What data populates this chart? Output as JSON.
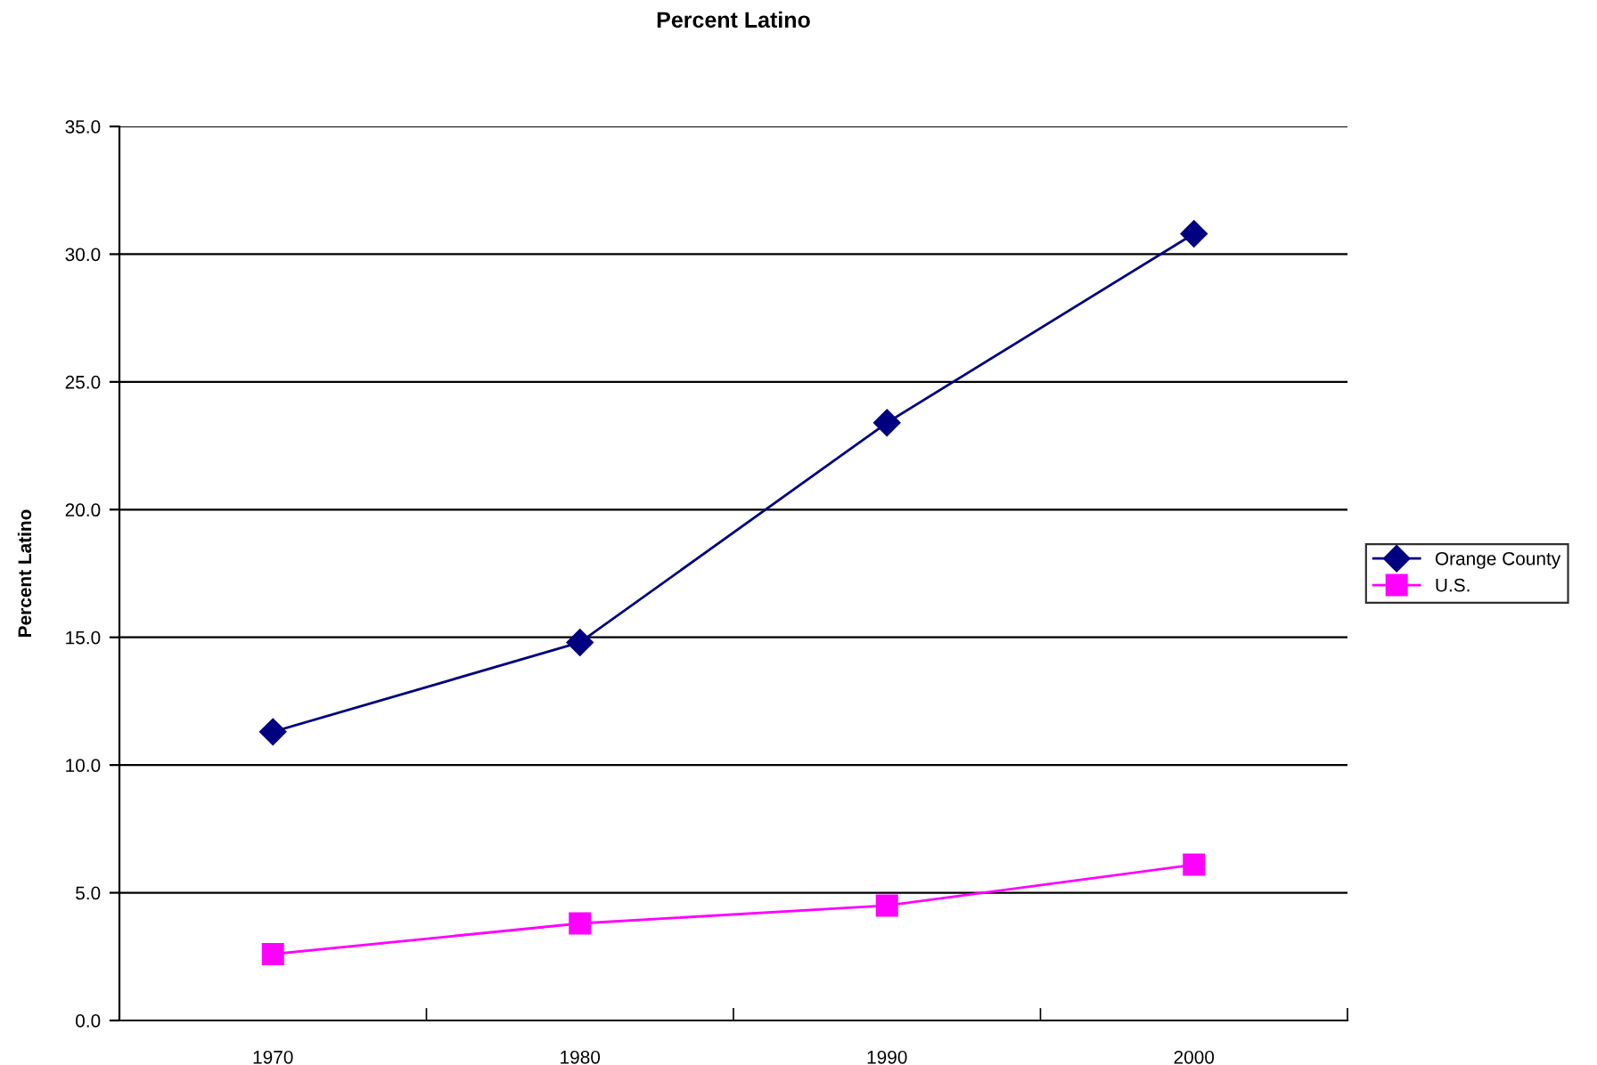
{
  "chart_data": {
    "type": "line",
    "title": "Percent Latino",
    "ylabel": "Percent Latino",
    "categories": [
      "1970",
      "1980",
      "1990",
      "2000"
    ],
    "series": [
      {
        "name": "Orange County",
        "color": "#000080",
        "marker": "diamond",
        "values": [
          11.3,
          14.8,
          23.4,
          30.8
        ]
      },
      {
        "name": "U.S.",
        "color": "#ff00ff",
        "marker": "square",
        "values": [
          2.6,
          3.8,
          4.5,
          6.1
        ]
      }
    ],
    "ylim": [
      0,
      35
    ],
    "yticks": [
      {
        "value": 0,
        "label": "0.0"
      },
      {
        "value": 5,
        "label": "5.0"
      },
      {
        "value": 10,
        "label": "10.0"
      },
      {
        "value": 15,
        "label": "15.0"
      },
      {
        "value": 20,
        "label": "20.0"
      },
      {
        "value": 25,
        "label": "25.0"
      },
      {
        "value": 30,
        "label": "30.0"
      },
      {
        "value": 35,
        "label": "35.0"
      }
    ],
    "grid": "y",
    "legend": "right"
  }
}
